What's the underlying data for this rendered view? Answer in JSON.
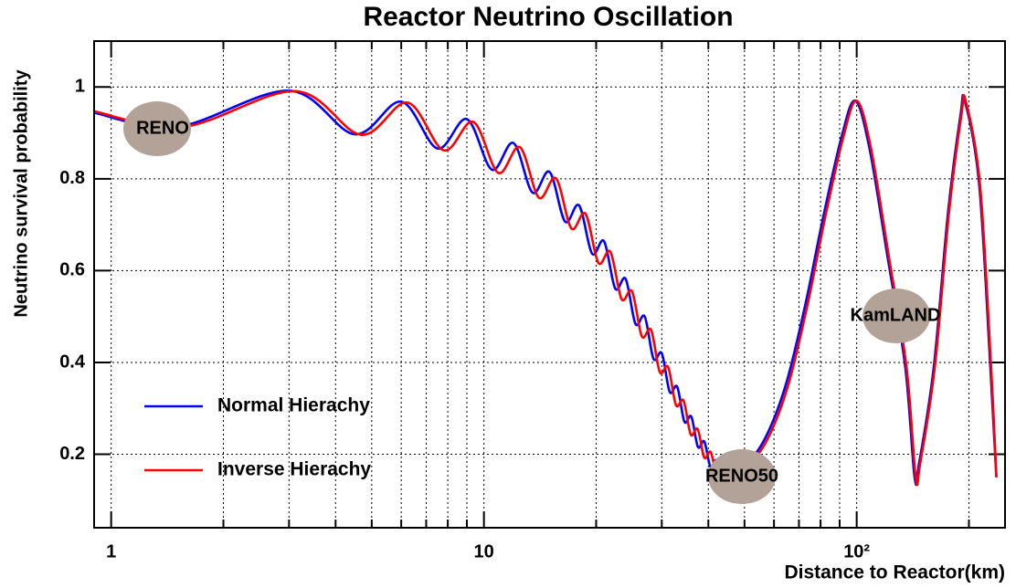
{
  "chart_data": {
    "type": "line",
    "title": "Reactor Neutrino Oscillation",
    "x_label": "Distance to Reactor(km)",
    "y_label": "Neutrino survival probability",
    "xscale": "log",
    "xlim": [
      0.9,
      250
    ],
    "xticks": [
      1,
      10,
      {
        "value": 100,
        "label": "10²"
      }
    ],
    "xminorticks": [
      2,
      3,
      4,
      5,
      6,
      7,
      8,
      9,
      20,
      30,
      40,
      50,
      60,
      70,
      80,
      90,
      200
    ],
    "ylim": [
      0.04,
      1.1
    ],
    "yticks": [
      0.2,
      0.4,
      0.6,
      0.8,
      1
    ],
    "grid": true,
    "legend": "lower left",
    "annotations": [
      "RENO",
      "RENO50",
      "KamLAND"
    ],
    "series": [
      {
        "name": "Normal Hierachy",
        "color": "#0000ff",
        "x": [
          0.9,
          1.5,
          3,
          4.5,
          6,
          7.5,
          9,
          10.5,
          12,
          13.5,
          15,
          16.5,
          18,
          19.5,
          21,
          22.5,
          24,
          25.5,
          27,
          28.5,
          30,
          31.5,
          33,
          34.5,
          36,
          37.5,
          39,
          40.5,
          42,
          43.5,
          47,
          52,
          58,
          65,
          73,
          81,
          91,
          99,
          108,
          121,
          135,
          143,
          147,
          161,
          176,
          190,
          195,
          213,
          228,
          237
        ],
        "values": [
          0.944,
          0.913,
          0.992,
          0.897,
          0.968,
          0.866,
          0.93,
          0.82,
          0.878,
          0.77,
          0.815,
          0.707,
          0.742,
          0.637,
          0.664,
          0.561,
          0.582,
          0.484,
          0.5,
          0.408,
          0.42,
          0.336,
          0.347,
          0.271,
          0.282,
          0.216,
          0.228,
          0.173,
          0.187,
          0.145,
          0.18,
          0.19,
          0.25,
          0.36,
          0.53,
          0.71,
          0.89,
          0.97,
          0.87,
          0.63,
          0.39,
          0.15,
          0.18,
          0.39,
          0.73,
          0.94,
          0.97,
          0.79,
          0.4,
          0.15
        ]
      },
      {
        "name": "Inverse Hierachy",
        "color": "#ff0000",
        "x": [
          0.9,
          1.56,
          3.12,
          4.68,
          6.24,
          7.8,
          9.36,
          10.92,
          12.48,
          14.04,
          15.6,
          17.16,
          18.72,
          20.28,
          21.84,
          23.4,
          24.96,
          26.52,
          28.08,
          29.64,
          31.2,
          32.76,
          34.32,
          35.88,
          37.44,
          39,
          40.56,
          42.12,
          43.68,
          48,
          53,
          59,
          66,
          74,
          82,
          92,
          100,
          109,
          122,
          136,
          144,
          148,
          162,
          177,
          191,
          196,
          214,
          229,
          237
        ],
        "values": [
          0.947,
          0.913,
          0.991,
          0.896,
          0.966,
          0.862,
          0.924,
          0.813,
          0.869,
          0.759,
          0.801,
          0.692,
          0.724,
          0.617,
          0.641,
          0.538,
          0.555,
          0.457,
          0.471,
          0.379,
          0.39,
          0.307,
          0.317,
          0.243,
          0.255,
          0.193,
          0.205,
          0.156,
          0.171,
          0.18,
          0.19,
          0.25,
          0.36,
          0.53,
          0.71,
          0.89,
          0.97,
          0.87,
          0.63,
          0.39,
          0.15,
          0.18,
          0.39,
          0.73,
          0.94,
          0.97,
          0.79,
          0.4,
          0.15
        ]
      }
    ]
  }
}
